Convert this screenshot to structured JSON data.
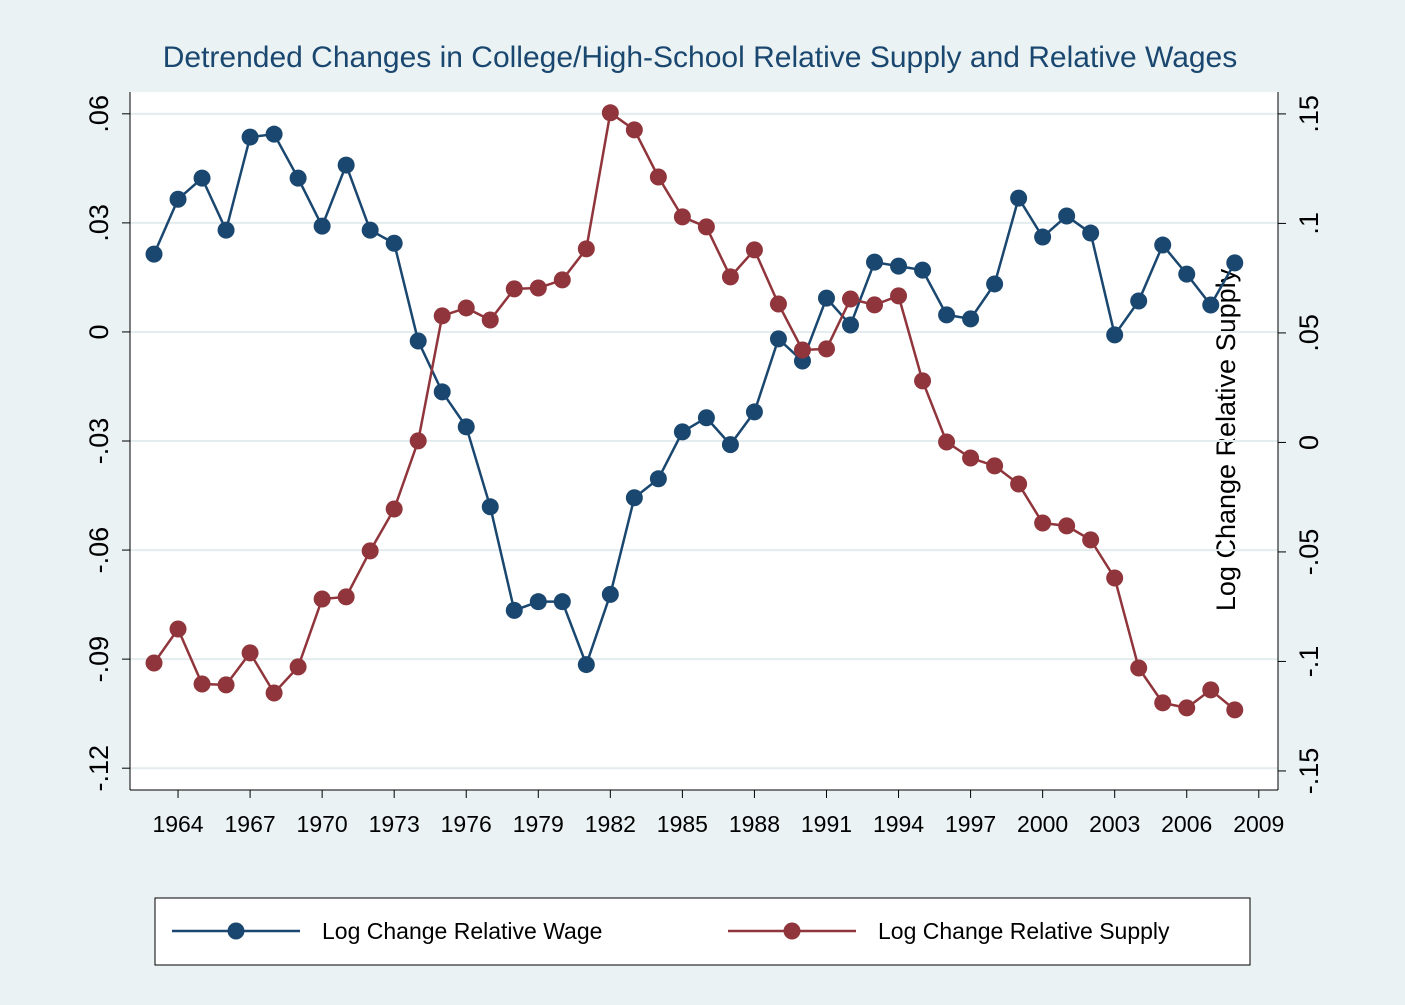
{
  "chart_data": {
    "type": "line",
    "title": "Detrended Changes in College/High-School Relative Supply and Relative Wages",
    "y2label": "Log Change Relative Supply",
    "x": [
      1963,
      1964,
      1965,
      1966,
      1967,
      1968,
      1969,
      1970,
      1971,
      1972,
      1973,
      1974,
      1975,
      1976,
      1977,
      1978,
      1979,
      1980,
      1981,
      1982,
      1983,
      1984,
      1985,
      1986,
      1987,
      1988,
      1989,
      1990,
      1991,
      1992,
      1993,
      1994,
      1995,
      1996,
      1997,
      1998,
      1999,
      2000,
      2001,
      2002,
      2003,
      2004,
      2005,
      2006,
      2007,
      2008
    ],
    "series": [
      {
        "name": "Log Change Relative Wage",
        "color": "#1a476f",
        "values": [
          0.0214,
          0.0365,
          0.0423,
          0.028,
          0.0536,
          0.0544,
          0.0423,
          0.0291,
          0.0459,
          0.028,
          0.0244,
          -0.0025,
          -0.0165,
          -0.0261,
          -0.0481,
          -0.0766,
          -0.0742,
          -0.0742,
          -0.0915,
          -0.0722,
          -0.0456,
          -0.0404,
          -0.0275,
          -0.0236,
          -0.031,
          -0.022,
          -0.0019,
          -0.008,
          0.0093,
          0.0019,
          0.0192,
          0.0181,
          0.017,
          0.0047,
          0.0036,
          0.0132,
          0.0368,
          0.0261,
          0.0319,
          0.0272,
          -0.0008,
          0.0085,
          0.0239,
          0.0159,
          0.0074,
          0.019
        ]
      },
      {
        "name": "Log Change Relative Supply",
        "color": "#90353b",
        "axis": "y2",
        "values": [
          -0.1007,
          -0.0852,
          -0.1103,
          -0.1107,
          -0.0961,
          -0.1144,
          -0.1025,
          -0.0715,
          -0.0705,
          -0.0495,
          -0.0304,
          0.0007,
          0.0578,
          0.0614,
          0.0559,
          0.0701,
          0.0705,
          0.0742,
          0.0884,
          0.1505,
          0.1427,
          0.1212,
          0.103,
          0.0984,
          0.0756,
          0.0879,
          0.0632,
          0.0422,
          0.0427,
          0.0655,
          0.0628,
          0.0669,
          0.0281,
          0.0002,
          -0.0071,
          -0.0107,
          -0.019,
          -0.0368,
          -0.0381,
          -0.0445,
          -0.0619,
          -0.103,
          -0.1189,
          -0.1212,
          -0.113,
          -0.1221
        ]
      }
    ],
    "xlim": [
      1962,
      2009.8
    ],
    "xticks": [
      1964,
      1967,
      1970,
      1973,
      1976,
      1979,
      1982,
      1985,
      1988,
      1991,
      1994,
      1997,
      2000,
      2003,
      2006,
      2009
    ],
    "ylim": [
      -0.126,
      0.066
    ],
    "yticks": [
      {
        "value": -0.12,
        "label": "-.12"
      },
      {
        "value": -0.09,
        "label": "-.09"
      },
      {
        "value": -0.06,
        "label": "-.06"
      },
      {
        "value": -0.03,
        "label": "-.03"
      },
      0,
      {
        "value": 0.03,
        "label": ".03"
      },
      {
        "value": 0.06,
        "label": ".06"
      }
    ],
    "y2lim": [
      -0.1587,
      0.16
    ],
    "y2ticks": [
      {
        "value": -0.15,
        "label": "-.15"
      },
      {
        "value": -0.1,
        "label": "-.1"
      },
      {
        "value": -0.05,
        "label": "-.05"
      },
      0,
      {
        "value": 0.05,
        "label": ".05"
      },
      {
        "value": 0.1,
        "label": ".1"
      },
      {
        "value": 0.15,
        "label": ".15"
      }
    ],
    "grid": true,
    "legend": "bottom"
  }
}
